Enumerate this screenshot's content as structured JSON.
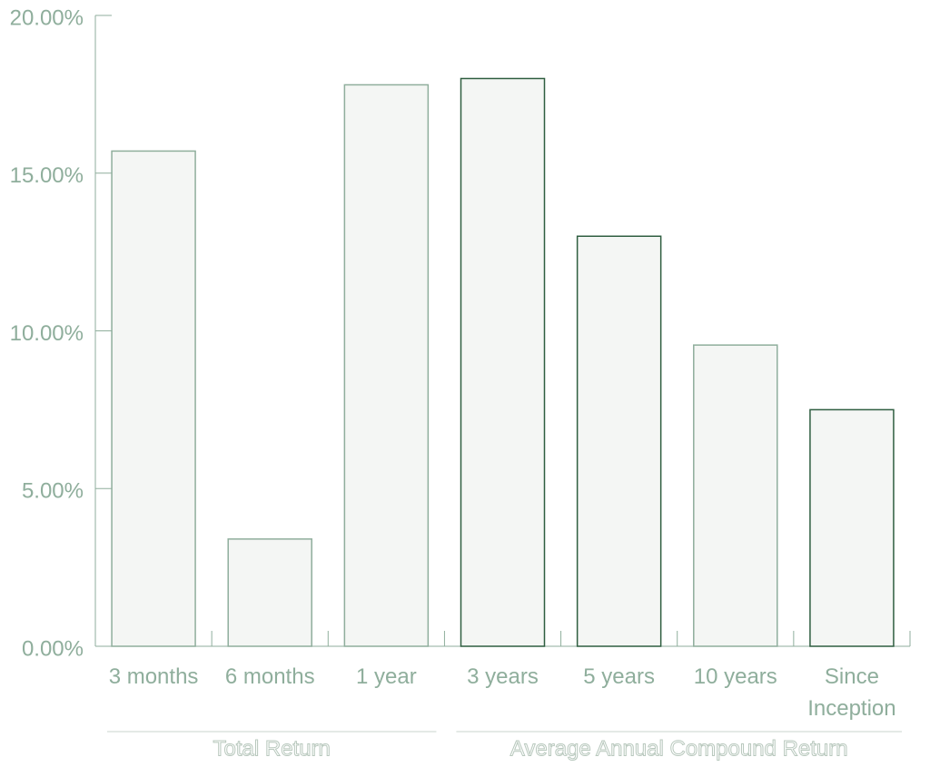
{
  "chart_data": {
    "type": "bar",
    "categories": [
      "3 months",
      "6 months",
      "1 year",
      "3 years",
      "5 years",
      "10 years",
      "Since Inception"
    ],
    "values": [
      15.7,
      3.4,
      17.8,
      18.0,
      13.0,
      9.55,
      7.5
    ],
    "bar_edge_colors": [
      "#8fae9c",
      "#8fae9c",
      "#8fae9c",
      "#2f5e40",
      "#2f5e40",
      "#8fae9c",
      "#2f5e40"
    ],
    "fill": "#f4f6f4",
    "ylim": [
      0,
      20
    ],
    "yticks": [
      {
        "value": 0,
        "label": "0.00%"
      },
      {
        "value": 5,
        "label": "5.00%"
      },
      {
        "value": 10,
        "label": "10.00%"
      },
      {
        "value": 15,
        "label": "15.00%"
      },
      {
        "value": 20,
        "label": "20.00%"
      }
    ],
    "groups": [
      {
        "label": "Total Return",
        "members": [
          "3 months",
          "6 months",
          "1 year"
        ]
      },
      {
        "label": "Average Annual Compound Return",
        "members": [
          "3 years",
          "5 years",
          "10 years",
          "Since Inception"
        ]
      }
    ]
  }
}
